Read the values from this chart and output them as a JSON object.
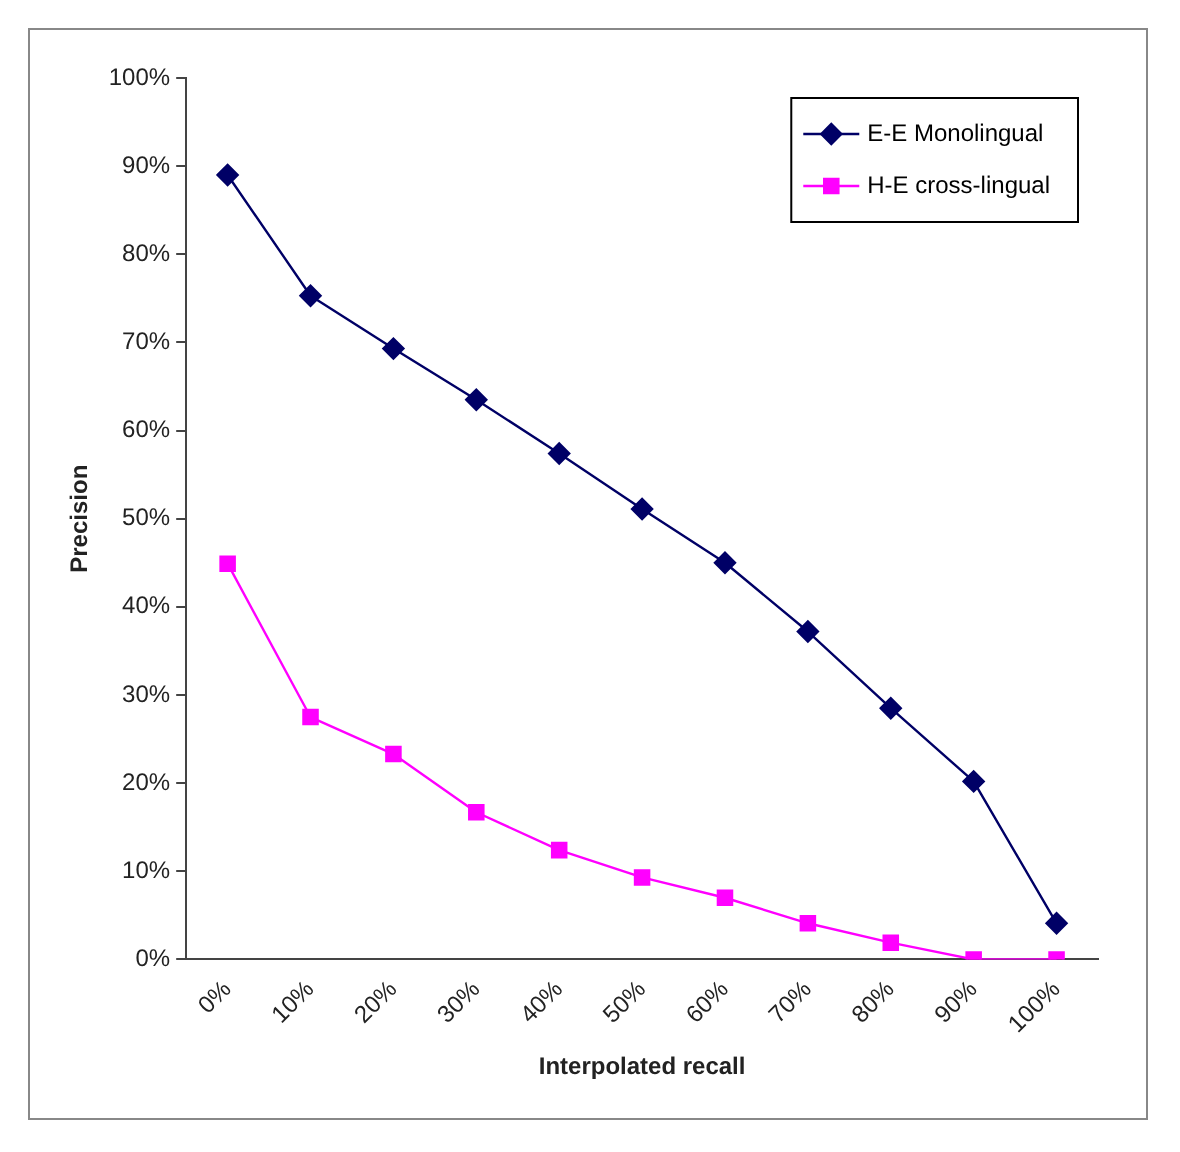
{
  "chart_data": {
    "type": "line",
    "xlabel": "Interpolated recall",
    "ylabel": "Precision",
    "categories": [
      "0%",
      "10%",
      "20%",
      "30%",
      "40%",
      "50%",
      "60%",
      "70%",
      "80%",
      "90%",
      "100%"
    ],
    "series": [
      {
        "name": "E-E Monolingual",
        "color": "#000066",
        "marker": "diamond",
        "values": [
          89.0,
          75.3,
          69.3,
          63.5,
          57.4,
          51.1,
          45.0,
          37.2,
          28.5,
          20.2,
          4.1
        ]
      },
      {
        "name": "H-E cross-lingual",
        "color": "#ff00ff",
        "marker": "square",
        "values": [
          44.9,
          27.5,
          23.3,
          16.7,
          12.4,
          9.3,
          7.0,
          4.1,
          1.9,
          0,
          0
        ]
      }
    ],
    "ylim": [
      0,
      100
    ],
    "yticks": [
      {
        "value": 0,
        "label": "0%"
      },
      {
        "value": 10,
        "label": "10%"
      },
      {
        "value": 20,
        "label": "20%"
      },
      {
        "value": 30,
        "label": "30%"
      },
      {
        "value": 40,
        "label": "40%"
      },
      {
        "value": 50,
        "label": "50%"
      },
      {
        "value": 60,
        "label": "60%"
      },
      {
        "value": 70,
        "label": "70%"
      },
      {
        "value": 80,
        "label": "80%"
      },
      {
        "value": 90,
        "label": "90%"
      },
      {
        "value": 100,
        "label": "100%"
      }
    ],
    "grid": false,
    "legend": "top right"
  }
}
